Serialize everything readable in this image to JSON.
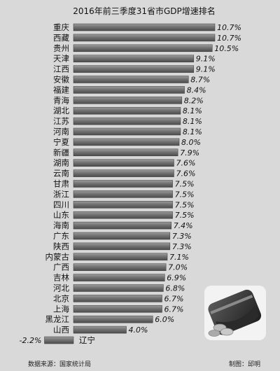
{
  "chart_data": {
    "type": "bar",
    "orientation": "horizontal",
    "title": "2016年前三季度31省市GDP增速排名",
    "categories": [
      "重庆",
      "西藏",
      "贵州",
      "天津",
      "江西",
      "安徽",
      "福建",
      "青海",
      "湖北",
      "江苏",
      "河南",
      "宁夏",
      "新疆",
      "湖南",
      "云南",
      "甘肃",
      "浙江",
      "四川",
      "山东",
      "海南",
      "广东",
      "陕西",
      "内蒙古",
      "广西",
      "吉林",
      "河北",
      "北京",
      "上海",
      "黑龙江",
      "山西",
      "辽宁"
    ],
    "values": [
      10.7,
      10.7,
      10.5,
      9.1,
      9.1,
      8.7,
      8.4,
      8.2,
      8.1,
      8.1,
      8.1,
      8.0,
      7.9,
      7.6,
      7.6,
      7.5,
      7.5,
      7.5,
      7.5,
      7.4,
      7.3,
      7.3,
      7.1,
      7.0,
      6.9,
      6.8,
      6.7,
      6.7,
      6.0,
      4.0,
      -2.2
    ],
    "value_labels": [
      "10.7%",
      "10.7%",
      "10.5%",
      "9.1%",
      "9.1%",
      "8.7%",
      "8.4%",
      "8.2%",
      "8.1%",
      "8.1%",
      "8.1%",
      "8.0%",
      "7.9%",
      "7.6%",
      "7.6%",
      "7.5%",
      "7.5%",
      "7.5%",
      "7.5%",
      "7.4%",
      "7.3%",
      "7.3%",
      "7.1%",
      "7.0%",
      "6.9%",
      "6.8%",
      "6.7%",
      "6.7%",
      "6.0%",
      "4.0%",
      "-2.2%"
    ],
    "xlim": [
      -2.2,
      10.7
    ],
    "grid": false,
    "legend": "none"
  },
  "source": "数据来源：国家统计局",
  "credit": "制图：邱明"
}
